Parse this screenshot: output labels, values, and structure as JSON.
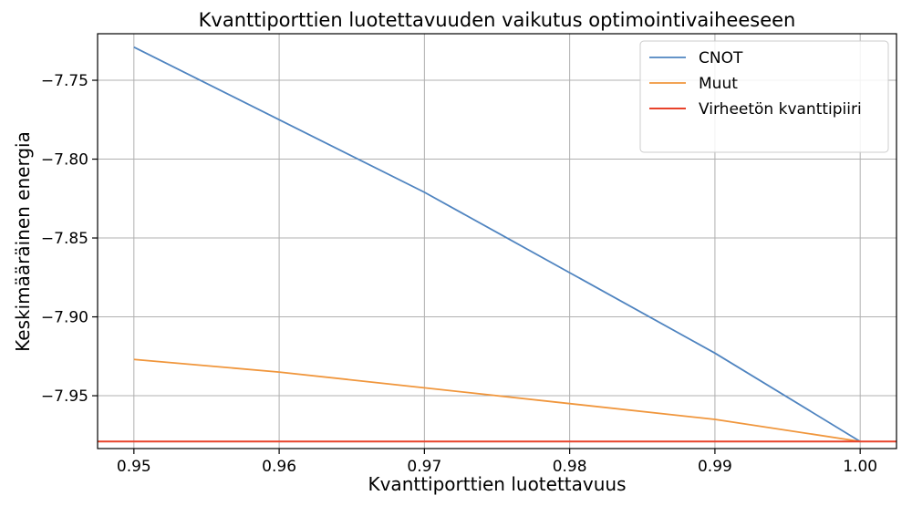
{
  "chart_data": {
    "type": "line",
    "title": "Kvanttiporttien luotettavuuden vaikutus optimointivaiheeseen",
    "xlabel": "Kvanttiporttien luotettavuus",
    "ylabel": "Keskimääräinen energia",
    "xlim": [
      0.9475,
      1.0025
    ],
    "ylim": [
      -7.9835,
      -7.7205
    ],
    "xticks": [
      0.95,
      0.96,
      0.97,
      0.98,
      0.99,
      1.0
    ],
    "xtick_labels": [
      "0.95",
      "0.96",
      "0.97",
      "0.98",
      "0.99",
      "1.00"
    ],
    "yticks": [
      -7.75,
      -7.8,
      -7.85,
      -7.9,
      -7.95
    ],
    "ytick_labels": [
      "−7.75",
      "−7.80",
      "−7.85",
      "−7.90",
      "−7.95"
    ],
    "grid": true,
    "legend_position": "top-right",
    "series": [
      {
        "name": "CNOT",
        "color": "#4f84c0",
        "x": [
          0.95,
          0.96,
          0.97,
          0.98,
          0.99,
          1.0
        ],
        "y": [
          -7.729,
          -7.775,
          -7.821,
          -7.872,
          -7.923,
          -7.979
        ]
      },
      {
        "name": "Muut",
        "color": "#f0963c",
        "x": [
          0.95,
          0.96,
          0.97,
          0.98,
          0.99,
          1.0
        ],
        "y": [
          -7.927,
          -7.935,
          -7.945,
          -7.955,
          -7.965,
          -7.979
        ]
      }
    ],
    "hlines": [
      {
        "name": "Virheetön kvanttipiiri",
        "color": "#e8422a",
        "y": -7.979
      }
    ]
  }
}
